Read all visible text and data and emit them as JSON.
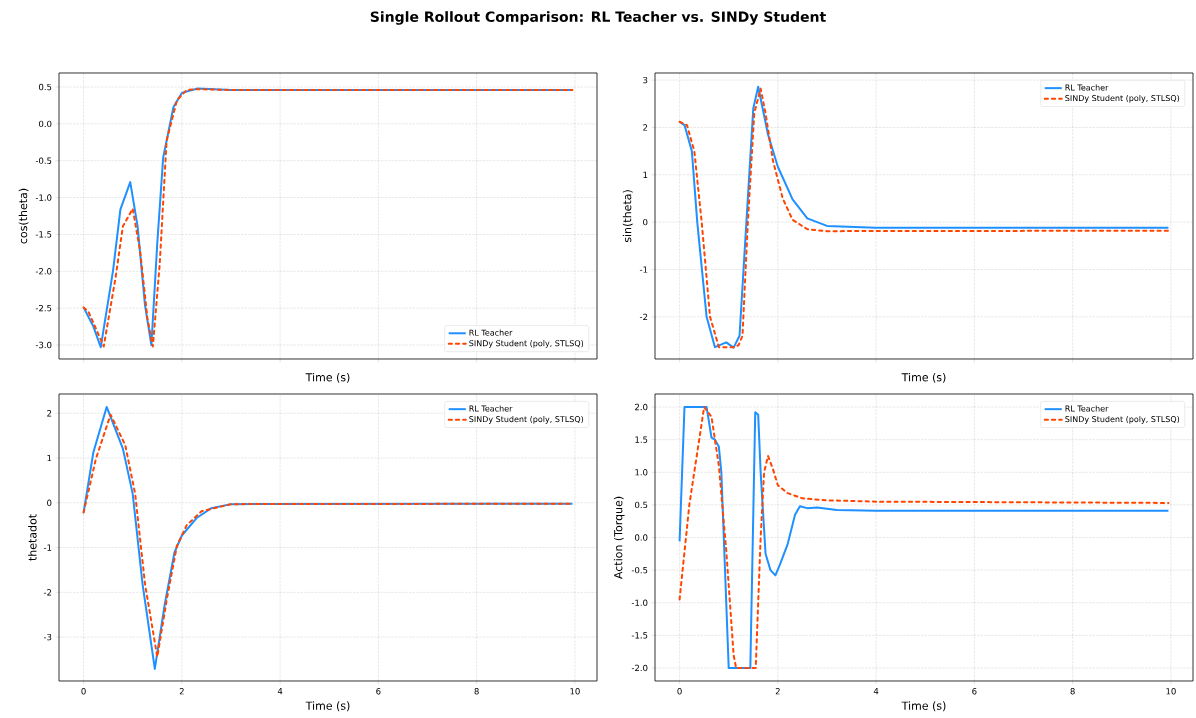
{
  "chart_data": [
    {
      "type": "line",
      "title": "Single Rollout Comparison: RL Teacher vs. SINDy Student",
      "xlabel": "Time (s)",
      "ylabel": "cos(theta)",
      "xlim": [
        -0.5,
        10.45
      ],
      "ylim": [
        -3.19,
        0.69
      ],
      "xticks": [
        0,
        2,
        4,
        6,
        8,
        10
      ],
      "yticks": [
        {
          "value": -3,
          "label": "-3.0"
        },
        -2.5,
        {
          "value": -2,
          "label": "-2.0"
        },
        -1.5,
        {
          "value": -1,
          "label": "-1.0"
        },
        -0.5,
        {
          "value": 0,
          "label": "0.0"
        },
        0.5
      ],
      "tick_labels": "y",
      "grid": true,
      "legend": "bottom right",
      "series": [
        {
          "name": "RL Teacher",
          "color": "#1e90ff",
          "line_style": "solid",
          "x": [
            0,
            0.2,
            0.35,
            0.6,
            0.75,
            0.95,
            1.1,
            1.25,
            1.38,
            1.5,
            1.62,
            1.83,
            2.0,
            2.32,
            3.0,
            9.95
          ],
          "values": [
            -2.49,
            -2.75,
            -3.03,
            -1.99,
            -1.16,
            -0.79,
            -1.39,
            -2.46,
            -3.0,
            -1.62,
            -0.46,
            0.23,
            0.42,
            0.48,
            0.46,
            0.46
          ]
        },
        {
          "name": "SINDy Student (poly, STLSQ)",
          "color": "#ff4500",
          "line_style": "dashed",
          "x": [
            0,
            0.1,
            0.2,
            0.41,
            0.65,
            0.8,
            1.0,
            1.15,
            1.3,
            1.41,
            1.55,
            1.69,
            1.9,
            2.1,
            2.32,
            3.0,
            9.95
          ],
          "values": [
            -2.49,
            -2.55,
            -2.7,
            -3.02,
            -2.09,
            -1.39,
            -1.15,
            -1.72,
            -2.64,
            -3.02,
            -1.9,
            -0.23,
            0.32,
            0.46,
            0.47,
            0.46,
            0.46
          ]
        }
      ]
    },
    {
      "type": "line",
      "xlabel": "Time (s)",
      "ylabel": "sin(theta)",
      "xlim": [
        -0.5,
        10.45
      ],
      "ylim": [
        -2.89,
        3.15
      ],
      "xticks": [
        0,
        2,
        4,
        6,
        8,
        10
      ],
      "yticks": [
        -2,
        -1,
        0,
        1,
        2,
        3
      ],
      "tick_labels": "y",
      "grid": true,
      "legend": "top right",
      "series": [
        {
          "name": "RL Teacher",
          "color": "#1e90ff",
          "line_style": "solid",
          "x": [
            0,
            0.1,
            0.25,
            0.36,
            0.55,
            0.72,
            0.95,
            1.1,
            1.22,
            1.36,
            1.5,
            1.6,
            1.8,
            2.0,
            2.3,
            2.6,
            3.0,
            4.0,
            9.95
          ],
          "values": [
            2.12,
            2.05,
            1.5,
            0,
            -2.0,
            -2.64,
            -2.54,
            -2.65,
            -2.4,
            0,
            2.4,
            2.86,
            1.85,
            1.17,
            0.48,
            0.08,
            -0.08,
            -0.12,
            -0.12
          ]
        },
        {
          "name": "SINDy Student (poly, STLSQ)",
          "color": "#ff4500",
          "line_style": "dashed",
          "x": [
            0,
            0.15,
            0.3,
            0.45,
            0.62,
            0.8,
            1.1,
            1.2,
            1.28,
            1.39,
            1.52,
            1.65,
            1.75,
            1.9,
            2.1,
            2.3,
            2.6,
            3.0,
            9.95
          ],
          "values": [
            2.12,
            2.05,
            1.5,
            0,
            -2.0,
            -2.64,
            -2.64,
            -2.6,
            -2.4,
            0,
            2.3,
            2.82,
            2.3,
            1.3,
            0.5,
            0.05,
            -0.15,
            -0.19,
            -0.18
          ]
        }
      ]
    },
    {
      "type": "line",
      "xlabel": "Time (s)",
      "ylabel": "thetadot",
      "xlim": [
        -0.5,
        10.45
      ],
      "ylim": [
        -3.98,
        2.43
      ],
      "xticks": [
        0,
        2,
        4,
        6,
        8,
        10
      ],
      "yticks": [
        -3,
        -2,
        -1,
        0,
        1,
        2
      ],
      "grid": true,
      "legend": "top right",
      "series": [
        {
          "name": "RL Teacher",
          "color": "#1e90ff",
          "line_style": "solid",
          "x": [
            0,
            0.2,
            0.47,
            0.8,
            1.0,
            1.2,
            1.45,
            1.65,
            1.85,
            2.0,
            2.3,
            2.6,
            3.0,
            9.95
          ],
          "values": [
            -0.22,
            1.13,
            2.14,
            1.21,
            0.2,
            -1.81,
            -3.71,
            -2.28,
            -1.11,
            -0.73,
            -0.34,
            -0.12,
            -0.03,
            -0.02
          ]
        },
        {
          "name": "SINDy Student (poly, STLSQ)",
          "color": "#ff4500",
          "line_style": "dashed",
          "x": [
            0,
            0.25,
            0.55,
            0.85,
            1.05,
            1.25,
            1.5,
            1.7,
            1.9,
            2.1,
            2.4,
            3.0,
            9.95
          ],
          "values": [
            -0.22,
            0.98,
            1.97,
            1.28,
            0.2,
            -1.81,
            -3.44,
            -2.12,
            -0.96,
            -0.5,
            -0.19,
            -0.03,
            -0.02
          ]
        }
      ]
    },
    {
      "type": "line",
      "xlabel": "Time (s)",
      "ylabel": "Action (Torque)",
      "xlim": [
        -0.5,
        10.45
      ],
      "ylim": [
        -2.2,
        2.2
      ],
      "xticks": [
        0,
        2,
        4,
        6,
        8,
        10
      ],
      "yticks": [
        {
          "value": -2,
          "label": "-2.0"
        },
        -1.5,
        {
          "value": -1,
          "label": "-1.0"
        },
        -0.5,
        {
          "value": 0,
          "label": "0.0"
        },
        0.5,
        {
          "value": 1,
          "label": "1.0"
        },
        1.5,
        {
          "value": 2,
          "label": "2.0"
        }
      ],
      "grid": true,
      "legend": "top right",
      "series": [
        {
          "name": "RL Teacher",
          "color": "#1e90ff",
          "line_style": "solid",
          "x": [
            0,
            0.1,
            0.55,
            0.65,
            0.72,
            0.8,
            0.85,
            1.0,
            1.44,
            1.54,
            1.6,
            1.65,
            1.75,
            1.85,
            1.95,
            2.05,
            2.2,
            2.35,
            2.45,
            2.6,
            2.8,
            3.2,
            4.0,
            9.95
          ],
          "values": [
            -0.06,
            2.0,
            2.0,
            1.53,
            1.5,
            1.39,
            1.0,
            -2.0,
            -2.0,
            1.92,
            1.88,
            1.0,
            -0.25,
            -0.5,
            -0.58,
            -0.4,
            -0.1,
            0.35,
            0.48,
            0.45,
            0.46,
            0.42,
            0.41,
            0.41
          ]
        },
        {
          "name": "SINDy Student (poly, STLSQ)",
          "color": "#ff4500",
          "line_style": "dashed",
          "x": [
            0,
            0.2,
            0.5,
            0.65,
            0.8,
            0.95,
            1.1,
            1.15,
            1.55,
            1.65,
            1.72,
            1.8,
            1.9,
            2.0,
            2.2,
            2.5,
            3.0,
            4.0,
            9.95
          ],
          "values": [
            -0.95,
            0.51,
            2.0,
            1.85,
            1.1,
            -0.2,
            -1.8,
            -2.0,
            -2.0,
            0.0,
            1.0,
            1.25,
            1.05,
            0.8,
            0.68,
            0.6,
            0.57,
            0.55,
            0.53
          ]
        }
      ]
    }
  ]
}
